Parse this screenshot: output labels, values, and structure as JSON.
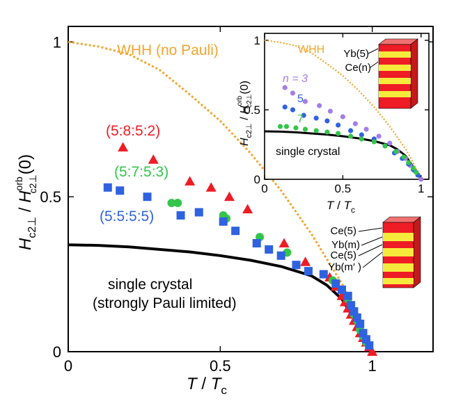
{
  "chart_data": [
    {
      "type": "scatter",
      "name": "main",
      "xlabel": "T / Tc",
      "ylabel": "Hc2⊥ / Hc2⊥orb(0)",
      "xlim": [
        0,
        1.2
      ],
      "ylim": [
        0,
        1.05
      ],
      "xticks": [
        "0",
        "0.5",
        "1"
      ],
      "yticks": [
        "0",
        "0.5",
        "1"
      ],
      "series": [
        {
          "name": "(5:8:5:2)",
          "marker": "triangle",
          "color": "#ee1c25",
          "x": [
            0.18,
            0.28,
            0.4,
            0.47,
            0.53,
            0.59,
            0.71,
            0.78,
            0.86,
            0.88,
            0.9,
            0.91,
            0.92,
            0.93,
            0.94,
            0.95,
            0.96,
            0.97,
            0.98,
            0.99,
            1.0
          ],
          "y": [
            0.66,
            0.62,
            0.55,
            0.53,
            0.5,
            0.46,
            0.35,
            0.29,
            0.24,
            0.21,
            0.18,
            0.16,
            0.14,
            0.12,
            0.1,
            0.08,
            0.06,
            0.045,
            0.03,
            0.015,
            0.0
          ]
        },
        {
          "name": "(5:7:5:3)",
          "marker": "circle",
          "color": "#33c64a",
          "x": [
            0.34,
            0.36,
            0.51,
            0.52,
            0.63,
            0.72,
            0.87,
            0.9,
            0.92,
            0.93,
            0.94,
            0.95,
            0.96,
            0.97,
            0.98
          ],
          "y": [
            0.48,
            0.48,
            0.44,
            0.43,
            0.37,
            0.32,
            0.23,
            0.2,
            0.17,
            0.15,
            0.12,
            0.1,
            0.07,
            0.05,
            0.03
          ]
        },
        {
          "name": "(5:5:5:5)",
          "marker": "square",
          "color": "#2f62e0",
          "x": [
            0.13,
            0.17,
            0.26,
            0.37,
            0.43,
            0.51,
            0.55,
            0.62,
            0.66,
            0.7,
            0.75,
            0.79,
            0.84,
            0.88,
            0.9,
            0.92,
            0.93,
            0.94,
            0.95,
            0.96,
            0.97,
            0.98,
            0.99
          ],
          "y": [
            0.53,
            0.52,
            0.5,
            0.44,
            0.45,
            0.42,
            0.39,
            0.35,
            0.33,
            0.31,
            0.28,
            0.26,
            0.25,
            0.22,
            0.2,
            0.18,
            0.15,
            0.13,
            0.11,
            0.09,
            0.06,
            0.04,
            0.02
          ]
        },
        {
          "name": "WHH (no Pauli)",
          "line": "dotted",
          "color": "#f4a52c",
          "x": [
            0,
            0.1,
            0.2,
            0.3,
            0.4,
            0.5,
            0.6,
            0.7,
            0.8,
            0.9,
            0.95,
            1.0
          ],
          "y": [
            1.0,
            0.985,
            0.96,
            0.91,
            0.83,
            0.745,
            0.64,
            0.52,
            0.38,
            0.22,
            0.12,
            0.0
          ]
        },
        {
          "name": "single crystal (strongly Pauli limited)",
          "line": "solid",
          "color": "#000000",
          "x": [
            0,
            0.1,
            0.2,
            0.3,
            0.4,
            0.5,
            0.6,
            0.7,
            0.8,
            0.85,
            0.9,
            0.95,
            1.0
          ],
          "y": [
            0.345,
            0.343,
            0.338,
            0.33,
            0.322,
            0.31,
            0.295,
            0.275,
            0.245,
            0.215,
            0.17,
            0.09,
            0.0
          ]
        }
      ],
      "annotations": {
        "whh": "WHH (no Pauli)",
        "s1": "(5:8:5:2)",
        "s2": "(5:7:5:3)",
        "s3": "(5:5:5:5)",
        "single1": "single crystal",
        "single2": "(strongly Pauli limited)"
      },
      "structure_labels": [
        "Ce(5)",
        "Yb(m)",
        "Ce(5)",
        "Yb(m′ )"
      ]
    },
    {
      "type": "scatter",
      "name": "inset",
      "xlabel": "T / Tc",
      "ylabel": "Hc2⊥ / Hc2⊥orb(0)",
      "xlim": [
        0,
        1.05
      ],
      "ylim": [
        0,
        1.05
      ],
      "xticks": [
        "0",
        "0.5",
        "1"
      ],
      "yticks": [
        "0",
        "0.5",
        "1"
      ],
      "series": [
        {
          "name": "n = 3",
          "marker": "circle",
          "color": "#a37ee8",
          "x": [
            0.13,
            0.18,
            0.26,
            0.35,
            0.42,
            0.5,
            0.58,
            0.65,
            0.73,
            0.8,
            0.85,
            0.9,
            0.93,
            0.96,
            0.98,
            1.0
          ],
          "y": [
            0.66,
            0.62,
            0.56,
            0.53,
            0.49,
            0.45,
            0.4,
            0.36,
            0.31,
            0.26,
            0.2,
            0.15,
            0.1,
            0.06,
            0.03,
            0.0
          ]
        },
        {
          "name": "5",
          "marker": "circle",
          "color": "#2f62e0",
          "x": [
            0.13,
            0.18,
            0.25,
            0.33,
            0.4,
            0.47,
            0.55,
            0.62,
            0.7,
            0.77,
            0.83,
            0.88,
            0.92,
            0.95,
            0.98
          ],
          "y": [
            0.52,
            0.5,
            0.46,
            0.44,
            0.42,
            0.39,
            0.35,
            0.32,
            0.29,
            0.24,
            0.19,
            0.15,
            0.11,
            0.07,
            0.03
          ]
        },
        {
          "name": "7",
          "marker": "circle",
          "color": "#33c64a",
          "x": [
            0.1,
            0.14,
            0.2,
            0.26,
            0.33,
            0.4,
            0.47,
            0.55,
            0.62,
            0.7,
            0.77,
            0.84,
            0.89,
            0.92,
            0.95,
            0.97
          ],
          "y": [
            0.38,
            0.38,
            0.37,
            0.36,
            0.35,
            0.34,
            0.33,
            0.31,
            0.29,
            0.27,
            0.24,
            0.2,
            0.16,
            0.12,
            0.08,
            0.05
          ]
        },
        {
          "name": "WHH",
          "line": "dotted",
          "color": "#f4a52c",
          "x": [
            0,
            0.1,
            0.2,
            0.3,
            0.4,
            0.5,
            0.6,
            0.7,
            0.8,
            0.9,
            0.95,
            1.0
          ],
          "y": [
            1.0,
            0.985,
            0.96,
            0.91,
            0.83,
            0.745,
            0.64,
            0.52,
            0.38,
            0.22,
            0.12,
            0.0
          ]
        },
        {
          "name": "single crystal",
          "line": "solid",
          "color": "#000000",
          "x": [
            0,
            0.1,
            0.2,
            0.3,
            0.4,
            0.5,
            0.6,
            0.7,
            0.8,
            0.85,
            0.9,
            0.95,
            1.0
          ],
          "y": [
            0.345,
            0.343,
            0.338,
            0.33,
            0.322,
            0.31,
            0.295,
            0.275,
            0.245,
            0.215,
            0.17,
            0.09,
            0.0
          ]
        }
      ],
      "annotations": {
        "whh": "WHH",
        "n3": "n = 3",
        "n5": "5",
        "n7": "7",
        "single": "single crystal"
      },
      "structure_labels": [
        "Yb(5)",
        "Ce(n)"
      ]
    }
  ]
}
